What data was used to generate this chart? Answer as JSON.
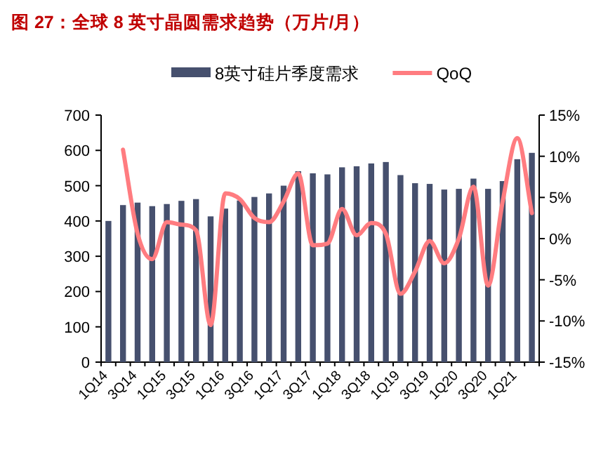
{
  "chart_data": {
    "type": "bar",
    "title": "图 27：全球 8 英寸晶圆需求趋势（万片/月）",
    "categories": [
      "1Q14",
      null,
      "3Q14",
      null,
      "1Q15",
      null,
      "3Q15",
      null,
      "1Q16",
      null,
      "3Q16",
      null,
      "1Q17",
      null,
      "3Q17",
      null,
      "1Q18",
      null,
      "3Q18",
      null,
      "1Q19",
      null,
      "3Q19",
      null,
      "1Q20",
      null,
      "3Q20",
      null,
      "1Q21",
      null
    ],
    "series": [
      {
        "name": "8英寸硅片季度需求",
        "color": "#46506e",
        "values": [
          400,
          445,
          452,
          442,
          448,
          457,
          462,
          413,
          435,
          458,
          468,
          478,
          500,
          541,
          535,
          532,
          552,
          555,
          563,
          567,
          530,
          507,
          505,
          489,
          491,
          520,
          491,
          513,
          575,
          593
        ]
      },
      {
        "name": "QoQ",
        "type": "line",
        "axis": "y2",
        "color": "#ff7c80",
        "values": [
          null,
          10.8,
          0.6,
          -2.5,
          2.0,
          1.7,
          1.0,
          -10.5,
          5.5,
          4.8,
          2.5,
          2.0,
          4.5,
          7.9,
          -0.8,
          -0.6,
          3.6,
          0.4,
          1.9,
          0.6,
          -6.7,
          -4.0,
          -0.3,
          -3.0,
          0.0,
          6.3,
          -5.7,
          4.5,
          12.2,
          3.1
        ]
      }
    ],
    "ylim": [
      0,
      700
    ],
    "yticks": [
      0,
      100,
      200,
      300,
      400,
      500,
      600,
      700
    ],
    "y2lim": [
      -15,
      15
    ],
    "y2ticks": [
      {
        "value": -15,
        "label": "-15%"
      },
      {
        "value": -10,
        "label": "-10%"
      },
      {
        "value": -5,
        "label": "-5%"
      },
      {
        "value": 0,
        "label": "0%"
      },
      {
        "value": 5,
        "label": "5%"
      },
      {
        "value": 10,
        "label": "10%"
      },
      {
        "value": 15,
        "label": "15%"
      }
    ],
    "legend": "top",
    "grid": false
  }
}
